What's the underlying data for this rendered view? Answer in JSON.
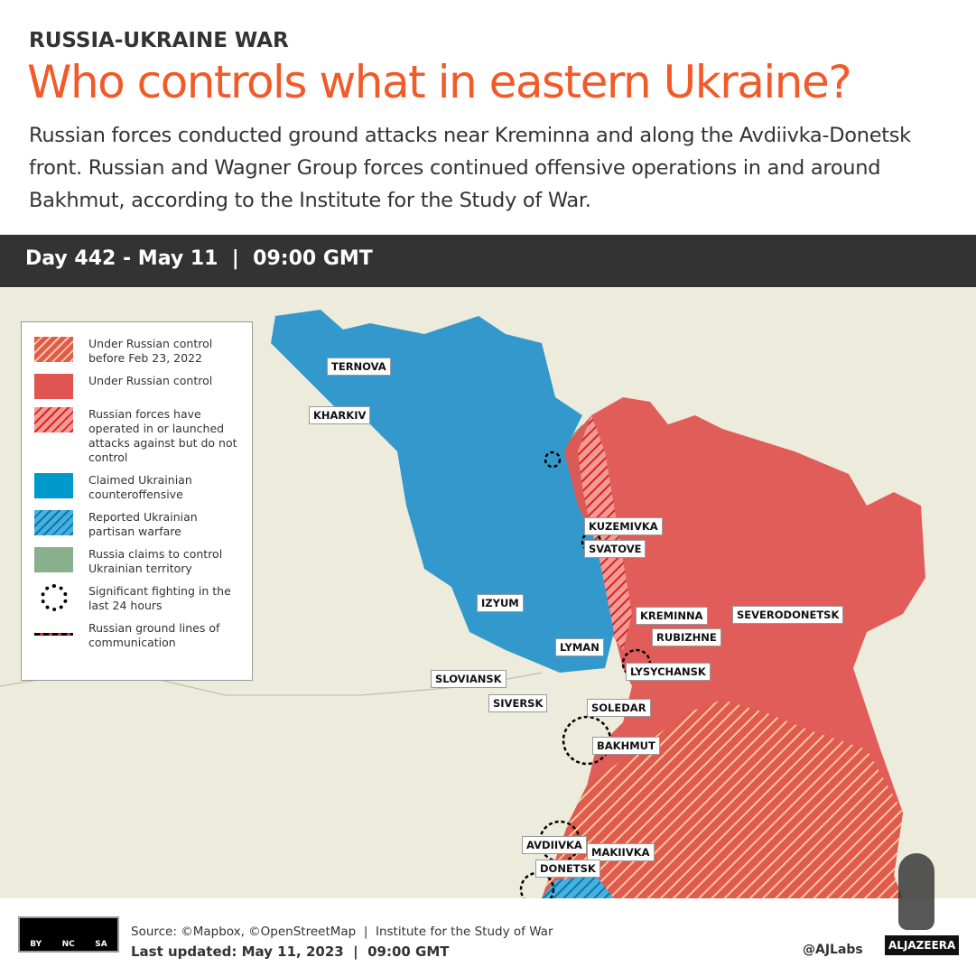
{
  "header": {
    "kicker": "RUSSIA-UKRAINE WAR",
    "title": "Who controls what in eastern Ukraine?",
    "subtitle": "Russian forces conducted ground attacks near Kreminna and along the Avdiivka-Donetsk front. Russian and Wagner Group forces continued offensive operations in and around Bakhmut, according to the Institute for the Study of War."
  },
  "daybar": "Day 442 - May 11  |  09:00 GMT",
  "legend": [
    {
      "label": "Under Russian control before Feb 23, 2022",
      "color": "#e05a4e",
      "pattern": "hatched-orange"
    },
    {
      "label": "Under Russian control",
      "color": "#e05552",
      "pattern": "solid"
    },
    {
      "label": "Russian forces have operated in or launched attacks against but do not control",
      "color": "#f29a95",
      "pattern": "hatched-red"
    },
    {
      "label": "Claimed Ukrainian counteroffensive",
      "color": "#0099cc",
      "pattern": "solid"
    },
    {
      "label": "Reported Ukrainian partisan warfare",
      "color": "#41b3e0",
      "pattern": "hatched-blue"
    },
    {
      "label": "Russia claims to control Ukrainian territory",
      "color": "#88b08a",
      "pattern": "solid"
    },
    {
      "label": "Significant fighting in the last 24 hours",
      "icon": "dashed-circle-icon"
    },
    {
      "label": "Russian ground lines of communication",
      "icon": "red-black-dashed-line-icon"
    }
  ],
  "places": {
    "ternova": "TERNOVA",
    "kharkiv": "KHARKIV",
    "kuzemivka": "KUZEMIVKA",
    "svatove": "SVATOVE",
    "izyum": "IZYUM",
    "kreminna": "KREMINNA",
    "severodonetsk": "SEVERODONETSK",
    "rubizhne": "RUBIZHNE",
    "lyman": "LYMAN",
    "lysychansk": "LYSYCHANSK",
    "sloviansk": "SLOVIANSK",
    "siversk": "SIVERSK",
    "soledar": "SOLEDAR",
    "bakhmut": "BAKHMUT",
    "avdiivka": "AVDIIVKA",
    "makiivka": "MAKIIVKA",
    "donetsk": "DONETSK"
  },
  "footer": {
    "license": [
      "BY",
      "NC",
      "SA"
    ],
    "source": "Source: ©Mapbox, ©OpenStreetMap  |  Institute for the Study of War",
    "updated": "Last updated: May 11, 2023  |  09:00 GMT",
    "handle": "@AJLabs",
    "brand": "ALJAZEERA"
  }
}
